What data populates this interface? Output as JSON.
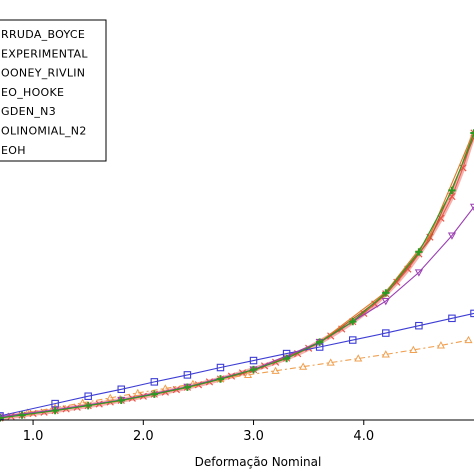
{
  "chart_data": {
    "type": "line",
    "title": "",
    "xlabel": "Deformação Nominal",
    "ylabel": "",
    "xlim": [
      0.7,
      5.0
    ],
    "ylim": [
      0,
      1
    ],
    "x_ticks": [
      {
        "value": 1.0,
        "label": "1.0"
      },
      {
        "value": 2.0,
        "label": "2.0"
      },
      {
        "value": 3.0,
        "label": "3.0"
      },
      {
        "value": 4.0,
        "label": "4.0"
      }
    ],
    "grid": false,
    "legend": {
      "placement": "top-left",
      "entries": [
        "RRUDA_BOYCE",
        "EXPERIMENTAL",
        "OONEY_RIVLIN",
        "EO_HOOKE",
        "GDEN_N3",
        "OLINOMIAL_N2",
        "EOH"
      ]
    },
    "series": [
      {
        "name": "RRUDA_BOYCE",
        "color": "#2a9a22",
        "marker": "plus",
        "line": "solid",
        "x": [
          0.7,
          0.9,
          1.2,
          1.5,
          1.8,
          2.1,
          2.4,
          2.7,
          3.0,
          3.3,
          3.6,
          3.9,
          4.2,
          4.5,
          4.8,
          5.0
        ],
        "y": [
          0.005,
          0.012,
          0.023,
          0.035,
          0.048,
          0.063,
          0.08,
          0.1,
          0.123,
          0.15,
          0.19,
          0.24,
          0.31,
          0.41,
          0.56,
          0.7
        ]
      },
      {
        "name": "EXPERIMENTAL",
        "color": "#e8554a",
        "marker": "x",
        "line": "solid-thick",
        "x": [
          0.7,
          0.8,
          0.9,
          1.0,
          1.1,
          1.2,
          1.3,
          1.4,
          1.5,
          1.6,
          1.7,
          1.8,
          1.9,
          2.0,
          2.1,
          2.2,
          2.3,
          2.4,
          2.5,
          2.6,
          2.7,
          2.8,
          2.9,
          3.0,
          3.1,
          3.2,
          3.3,
          3.4,
          3.5,
          3.6,
          3.7,
          3.8,
          3.9,
          4.0,
          4.1,
          4.2,
          4.3,
          4.4,
          4.5,
          4.6,
          4.7,
          4.8,
          4.9,
          5.0
        ],
        "y": [
          0.005,
          0.009,
          0.012,
          0.016,
          0.019,
          0.023,
          0.027,
          0.031,
          0.035,
          0.039,
          0.044,
          0.048,
          0.053,
          0.058,
          0.063,
          0.068,
          0.074,
          0.08,
          0.086,
          0.093,
          0.1,
          0.107,
          0.115,
          0.123,
          0.132,
          0.141,
          0.151,
          0.162,
          0.175,
          0.19,
          0.205,
          0.222,
          0.24,
          0.26,
          0.283,
          0.308,
          0.336,
          0.368,
          0.405,
          0.446,
          0.492,
          0.545,
          0.615,
          0.7
        ]
      },
      {
        "name": "OONEY_RIVLIN",
        "color": "#9b3fb3",
        "marker": "triangle-down",
        "line": "solid",
        "x": [
          0.7,
          1.2,
          1.8,
          2.4,
          3.0,
          3.6,
          4.2,
          4.5,
          4.8,
          5.0
        ],
        "y": [
          0.008,
          0.025,
          0.049,
          0.081,
          0.123,
          0.19,
          0.29,
          0.36,
          0.45,
          0.52
        ]
      },
      {
        "name": "EO_HOOKE",
        "color": "#3d3dd6",
        "marker": "square",
        "line": "solid",
        "x": [
          0.7,
          1.2,
          1.5,
          1.8,
          2.1,
          2.4,
          2.7,
          3.0,
          3.3,
          3.6,
          3.9,
          4.2,
          4.5,
          4.8,
          5.0
        ],
        "y": [
          0.01,
          0.04,
          0.058,
          0.075,
          0.093,
          0.11,
          0.128,
          0.145,
          0.162,
          0.178,
          0.195,
          0.212,
          0.23,
          0.248,
          0.26
        ]
      },
      {
        "name": "GDEN_N3",
        "color": "#f0a050",
        "marker": "triangle-up",
        "line": "dash-dot",
        "x": [
          0.7,
          0.95,
          1.2,
          1.45,
          1.7,
          1.95,
          2.2,
          2.45,
          2.7,
          2.95,
          3.2,
          3.45,
          3.7,
          3.95,
          4.2,
          4.45,
          4.7,
          4.95
        ],
        "y": [
          0.006,
          0.018,
          0.03,
          0.042,
          0.054,
          0.066,
          0.077,
          0.088,
          0.1,
          0.11,
          0.12,
          0.13,
          0.14,
          0.15,
          0.16,
          0.171,
          0.182,
          0.195
        ]
      },
      {
        "name": "OLINOMIAL_N2",
        "color": "#b05a2a",
        "marker": "none",
        "line": "solid",
        "x": [
          0.7,
          1.2,
          1.8,
          2.4,
          3.0,
          3.6,
          4.2,
          4.6,
          5.0
        ],
        "y": [
          0.006,
          0.024,
          0.047,
          0.079,
          0.12,
          0.188,
          0.305,
          0.44,
          0.69
        ]
      },
      {
        "name": "EOH",
        "color": "#e07a2a",
        "marker": "none",
        "line": "solid",
        "x": [
          0.7,
          1.2,
          1.8,
          2.4,
          3.0,
          3.6,
          4.2,
          4.6,
          5.0
        ],
        "y": [
          0.005,
          0.023,
          0.047,
          0.08,
          0.122,
          0.19,
          0.312,
          0.45,
          0.705
        ]
      }
    ]
  }
}
